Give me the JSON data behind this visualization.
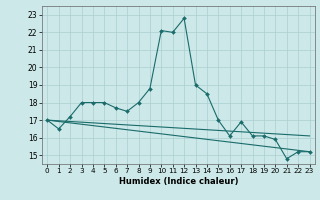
{
  "title": "",
  "xlabel": "Humidex (Indice chaleur)",
  "xlim": [
    -0.5,
    23.5
  ],
  "ylim": [
    14.5,
    23.5
  ],
  "yticks": [
    15,
    16,
    17,
    18,
    19,
    20,
    21,
    22,
    23
  ],
  "xticks": [
    0,
    1,
    2,
    3,
    4,
    5,
    6,
    7,
    8,
    9,
    10,
    11,
    12,
    13,
    14,
    15,
    16,
    17,
    18,
    19,
    20,
    21,
    22,
    23
  ],
  "bg_color": "#cce8e8",
  "line_color": "#1a6b6b",
  "grid_color": "#aacfcf",
  "curve1_x": [
    0,
    1,
    2,
    3,
    4,
    5,
    6,
    7,
    8,
    9,
    10,
    11,
    12,
    13,
    14,
    15,
    16,
    17,
    18,
    19,
    20,
    21,
    22,
    23
  ],
  "curve1_y": [
    17.0,
    16.5,
    17.2,
    18.0,
    18.0,
    18.0,
    17.7,
    17.5,
    18.0,
    18.8,
    22.1,
    22.0,
    22.8,
    19.0,
    18.5,
    17.0,
    16.1,
    16.9,
    16.1,
    16.1,
    15.9,
    14.8,
    15.2,
    15.2
  ],
  "line2_x": [
    0,
    23
  ],
  "line2_y": [
    17.0,
    16.1
  ],
  "line3_x": [
    0,
    23
  ],
  "line3_y": [
    17.0,
    15.2
  ],
  "xlabel_fontsize": 6.0,
  "tick_fontsize": 5.2,
  "ytick_fontsize": 5.5
}
